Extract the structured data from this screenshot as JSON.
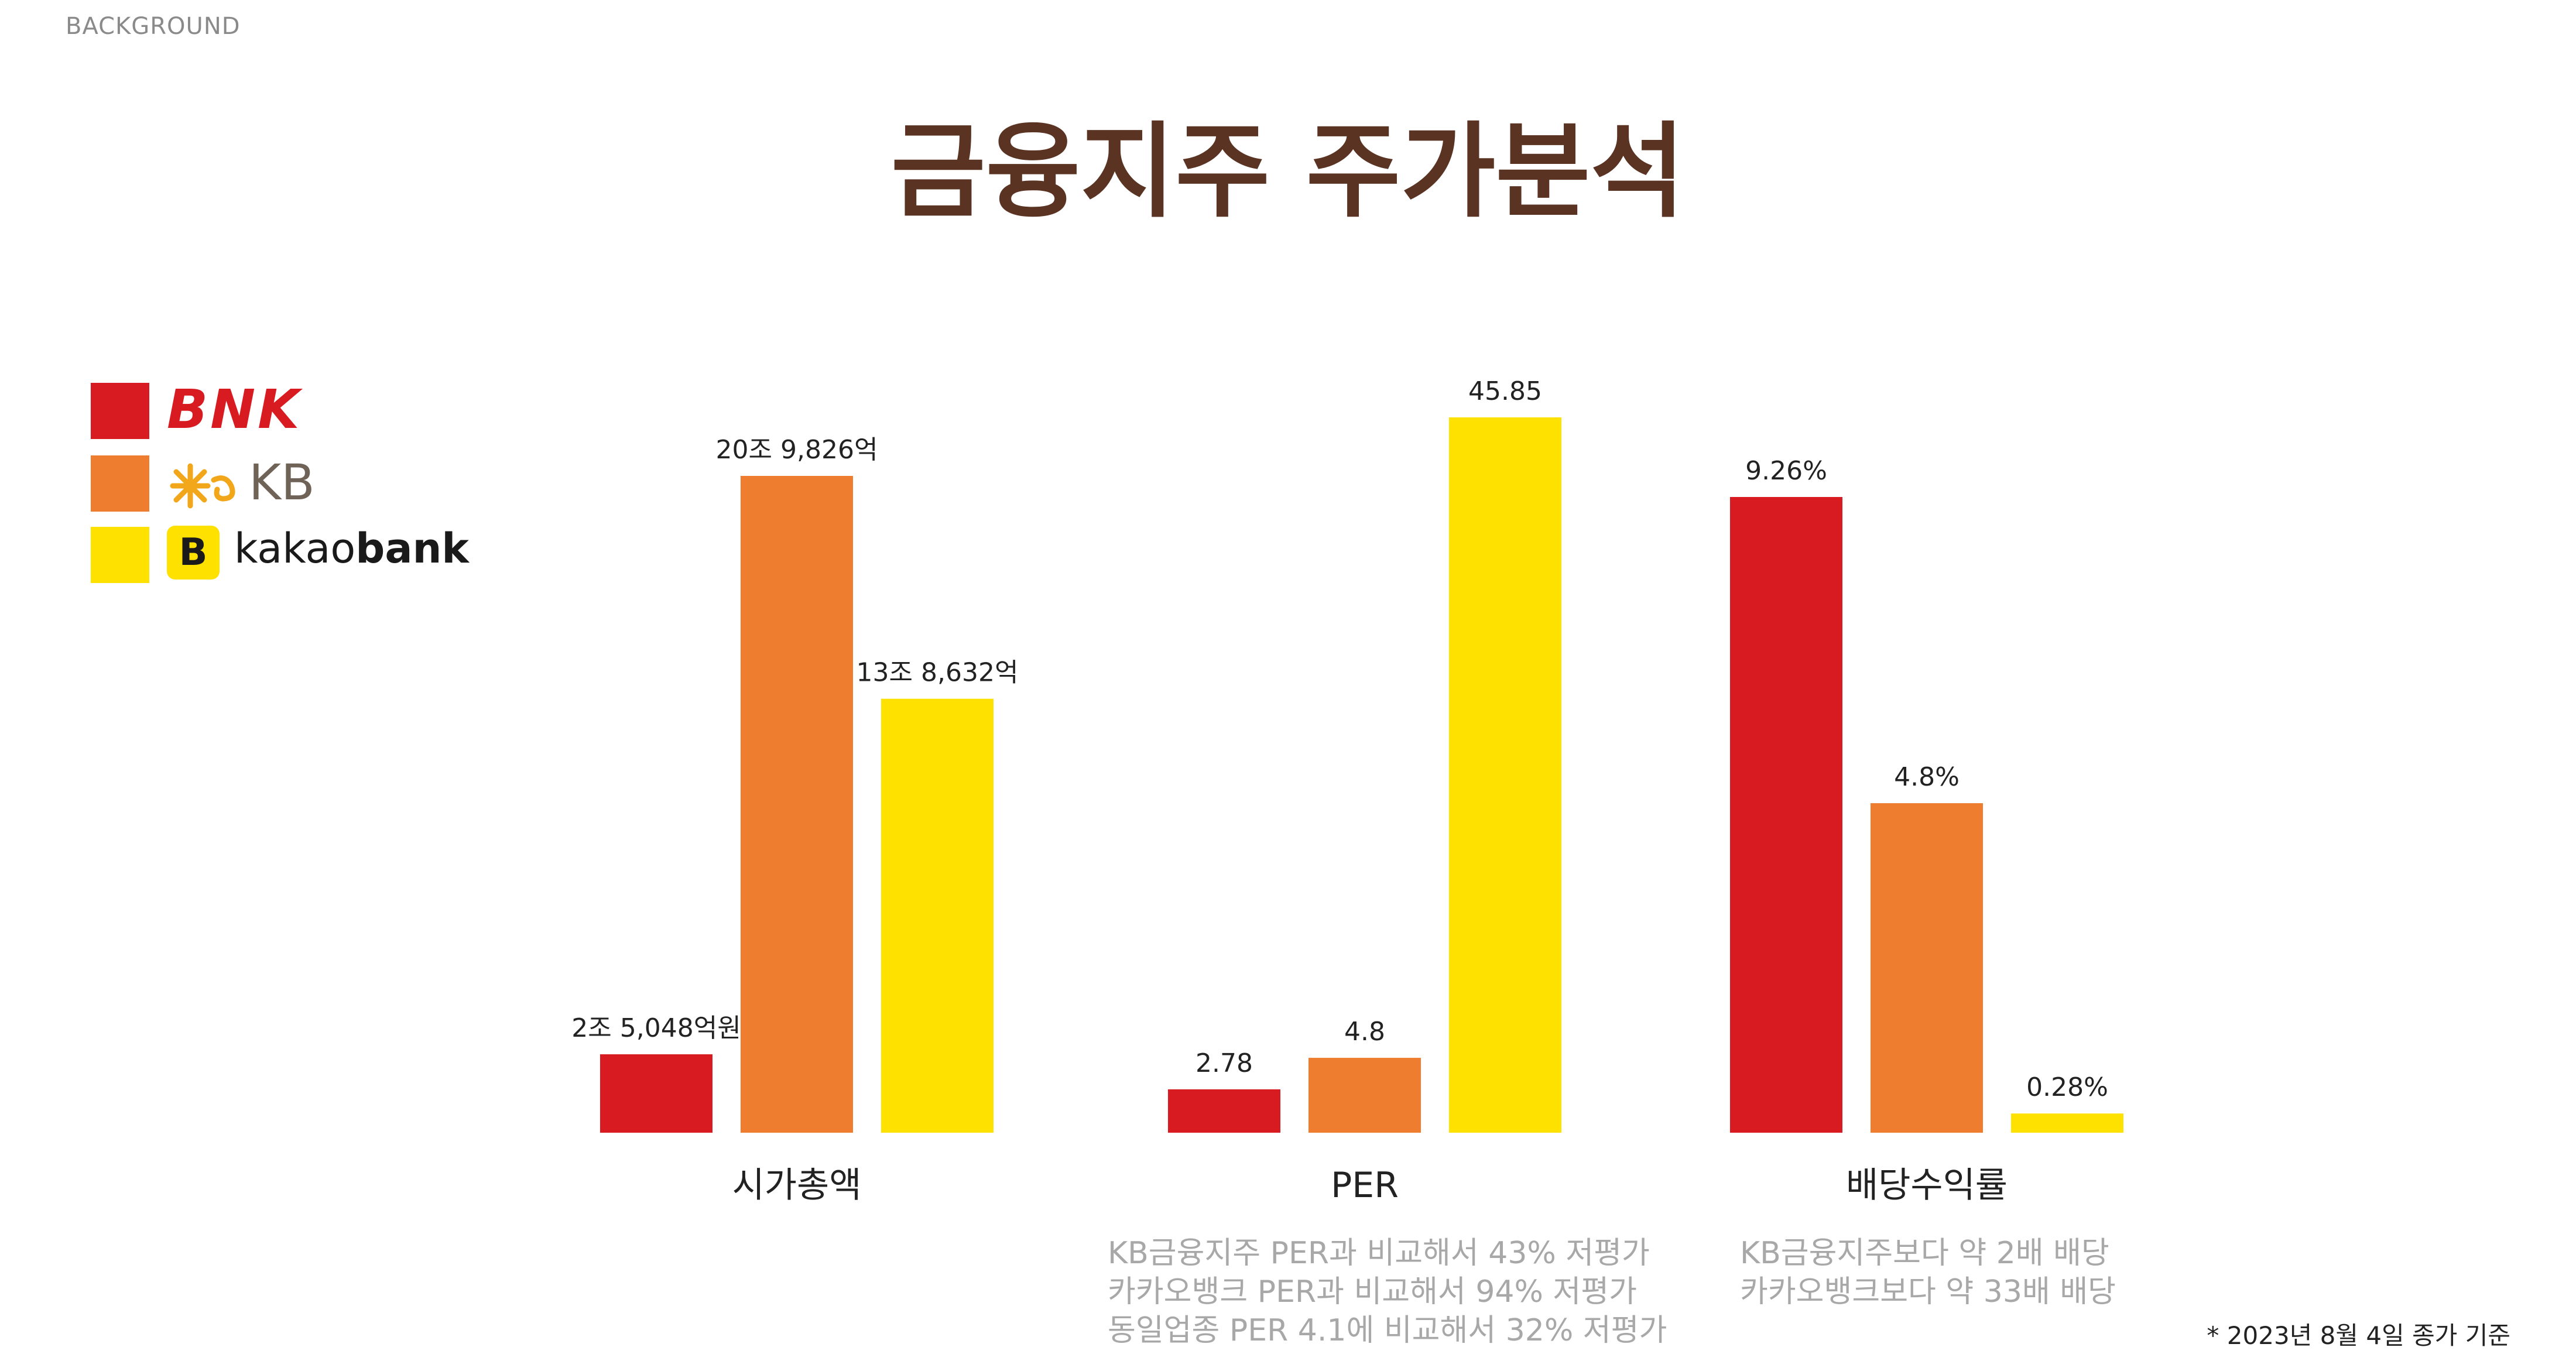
{
  "page": {
    "section_label": "BACKGROUND",
    "title": "금융지주 주가분석",
    "footnote": "* 2023년 8월 4일 종가 기준"
  },
  "legend": [
    {
      "name": "BNK",
      "color": "#d81b20",
      "icon": "bnk-logo"
    },
    {
      "name": "KB",
      "color": "#ee7d30",
      "icon": "kb-star-logo"
    },
    {
      "name": "kakaobank",
      "color": "#ffe100",
      "icon": "kakaobank-b-logo",
      "logo_parts": [
        "kakao",
        "bank"
      ]
    }
  ],
  "notes": {
    "per": [
      "KB금융지주 PER과 비교해서 43% 저평가",
      "카카오뱅크 PER과 비교해서 94% 저평가",
      "동일업종 PER 4.1에 비교해서 32% 저평가"
    ],
    "dividend": [
      "KB금융지주보다 약 2배 배당",
      "카카오뱅크보다 약 33배 배당"
    ]
  },
  "chart_data": [
    {
      "type": "bar",
      "xlabel": "시가총액",
      "categories": [
        "BNK",
        "KB",
        "kakaobank"
      ],
      "values": [
        25048,
        209826,
        138632
      ],
      "unit": "억원",
      "data_labels": [
        "2조 5,048억원",
        "20조 9,826억",
        "13조 8,632억"
      ],
      "colors": [
        "#d81b20",
        "#ee7d30",
        "#ffe100"
      ]
    },
    {
      "type": "bar",
      "xlabel": "PER",
      "categories": [
        "BNK",
        "KB",
        "kakaobank"
      ],
      "values": [
        2.78,
        4.8,
        45.85
      ],
      "data_labels": [
        "2.78",
        "4.8",
        "45.85"
      ],
      "colors": [
        "#d81b20",
        "#ee7d30",
        "#ffe100"
      ]
    },
    {
      "type": "bar",
      "xlabel": "배당수익률",
      "categories": [
        "BNK",
        "KB",
        "kakaobank"
      ],
      "values": [
        9.26,
        4.8,
        0.28
      ],
      "unit": "%",
      "data_labels": [
        "9.26%",
        "4.8%",
        "0.28%"
      ],
      "colors": [
        "#d81b20",
        "#ee7d30",
        "#ffe100"
      ]
    }
  ]
}
